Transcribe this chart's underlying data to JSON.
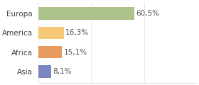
{
  "categories": [
    "Europa",
    "America",
    "Africa",
    "Asia"
  ],
  "values": [
    60.5,
    16.3,
    15.1,
    8.1
  ],
  "labels": [
    "60,5%",
    "16,3%",
    "15,1%",
    "8,1%"
  ],
  "bar_colors": [
    "#adc18a",
    "#f5c878",
    "#e89a60",
    "#7b87c4"
  ],
  "background_color": "#ffffff",
  "xlim": [
    0,
    100
  ],
  "grid_xticks": [
    0,
    33.3,
    66.6,
    100
  ],
  "label_fontsize": 7.5,
  "tick_fontsize": 7.5,
  "bar_height": 0.65
}
